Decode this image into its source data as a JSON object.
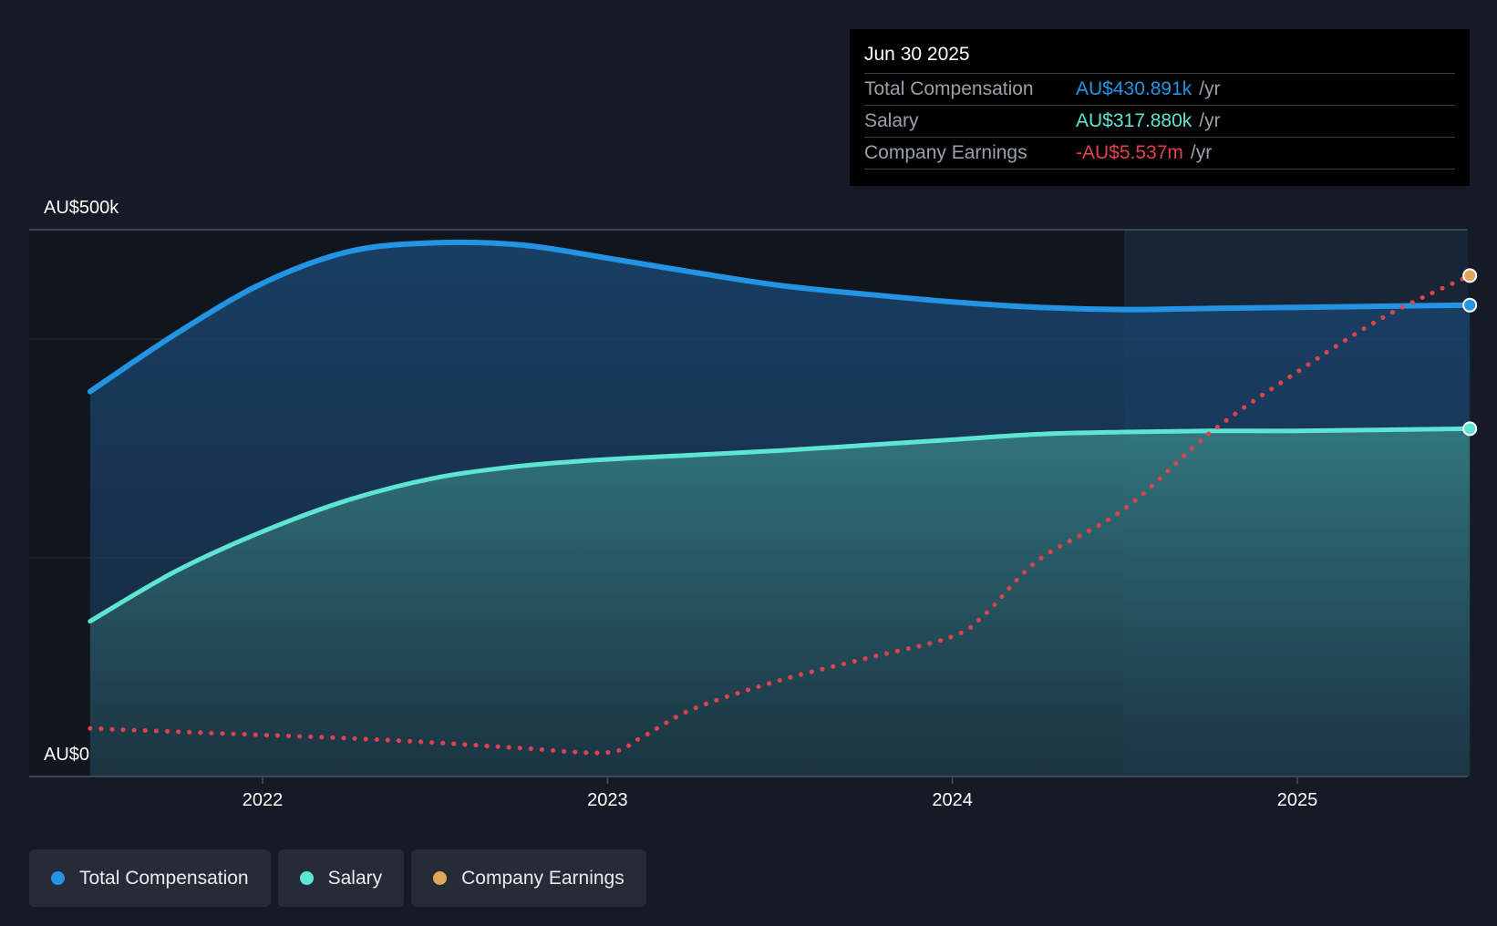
{
  "chart_data": {
    "type": "line",
    "title": "",
    "x_ticks": [
      "2022",
      "2023",
      "2024",
      "2025"
    ],
    "y_tick_labels": [
      "AU$500k",
      "AU$0"
    ],
    "ylim": [
      0,
      500
    ],
    "y_unit": "AU$k",
    "series": [
      {
        "name": "Total Compensation",
        "color": "#2394e3",
        "style": "solid-area",
        "x": [
          2021.5,
          2021.75,
          2022.0,
          2022.25,
          2022.5,
          2022.75,
          2023.0,
          2023.25,
          2023.5,
          2023.75,
          2024.0,
          2024.25,
          2024.5,
          2024.75,
          2025.0,
          2025.25,
          2025.5
        ],
        "values": [
          352,
          405,
          451,
          480,
          488,
          486,
          474,
          461,
          449,
          441,
          434,
          429,
          427,
          428,
          429,
          430,
          431
        ]
      },
      {
        "name": "Salary",
        "color": "#5de4d2",
        "style": "solid-area",
        "x": [
          2021.5,
          2021.75,
          2022.0,
          2022.25,
          2022.5,
          2022.75,
          2023.0,
          2023.25,
          2023.5,
          2023.75,
          2024.0,
          2024.25,
          2024.5,
          2024.75,
          2025.0,
          2025.25,
          2025.5
        ],
        "values": [
          142,
          188,
          224,
          253,
          273,
          284,
          290,
          294,
          298,
          303,
          308,
          313,
          315,
          316,
          316,
          317,
          318
        ]
      },
      {
        "name": "Company Earnings",
        "color": "#e0434b",
        "marker_color": "#e2a65a",
        "style": "dotted",
        "x": [
          2021.5,
          2021.75,
          2022.0,
          2022.25,
          2022.5,
          2022.75,
          2023.0,
          2023.1,
          2023.25,
          2023.5,
          2023.75,
          2024.0,
          2024.1,
          2024.25,
          2024.5,
          2024.75,
          2025.0,
          2025.25,
          2025.5
        ],
        "values": [
          44,
          41,
          38,
          35,
          31,
          26,
          22,
          36,
          62,
          88,
          108,
          128,
          150,
          198,
          245,
          315,
          370,
          420,
          458
        ]
      }
    ],
    "highlight_from": 2024.5
  },
  "tooltip": {
    "date": "Jun 30 2025",
    "rows": [
      {
        "label": "Total Compensation",
        "value": "AU$430.891k",
        "unit": "/yr",
        "color": "#2394e3"
      },
      {
        "label": "Salary",
        "value": "AU$317.880k",
        "unit": "/yr",
        "color": "#5de4d2"
      },
      {
        "label": "Company Earnings",
        "value": "-AU$5.537m",
        "unit": "/yr",
        "color": "#e0434b"
      }
    ]
  },
  "legend": [
    {
      "label": "Total Compensation",
      "color": "#2394e3"
    },
    {
      "label": "Salary",
      "color": "#5de4d2"
    },
    {
      "label": "Company Earnings",
      "color": "#e2a65a"
    }
  ]
}
